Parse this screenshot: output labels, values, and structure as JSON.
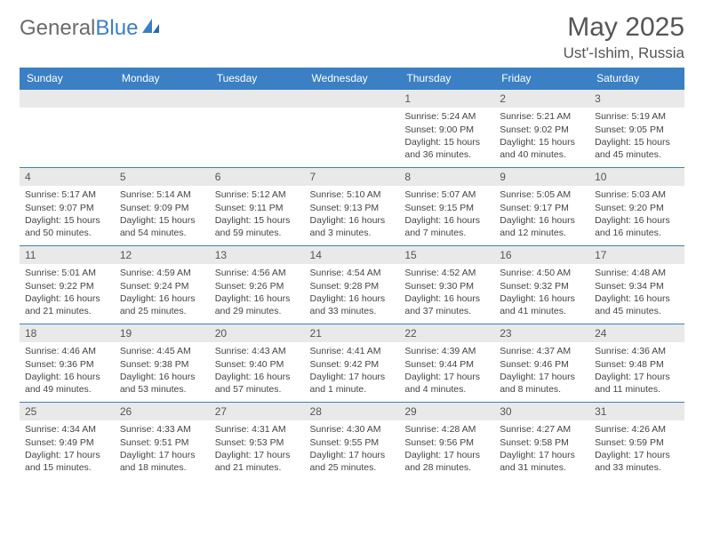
{
  "brand": {
    "general": "General",
    "blue": "Blue"
  },
  "title": "May 2025",
  "location": "Ust'-Ishim, Russia",
  "colors": {
    "header_bg": "#3b7fc4",
    "header_fg": "#ffffff",
    "band_bg": "#e9e9e9",
    "row_divider": "#3b7fc4",
    "text": "#444444",
    "title_color": "#555555",
    "logo_gray": "#6b6b6b"
  },
  "typography": {
    "title_fontsize": 30,
    "location_fontsize": 17,
    "weekday_fontsize": 12,
    "daynum_fontsize": 12,
    "body_fontsize": 10.5
  },
  "weekdays": [
    "Sunday",
    "Monday",
    "Tuesday",
    "Wednesday",
    "Thursday",
    "Friday",
    "Saturday"
  ],
  "weeks": [
    [
      null,
      null,
      null,
      null,
      {
        "n": "1",
        "sunrise": "5:24 AM",
        "sunset": "9:00 PM",
        "dl": "15 hours and 36 minutes."
      },
      {
        "n": "2",
        "sunrise": "5:21 AM",
        "sunset": "9:02 PM",
        "dl": "15 hours and 40 minutes."
      },
      {
        "n": "3",
        "sunrise": "5:19 AM",
        "sunset": "9:05 PM",
        "dl": "15 hours and 45 minutes."
      }
    ],
    [
      {
        "n": "4",
        "sunrise": "5:17 AM",
        "sunset": "9:07 PM",
        "dl": "15 hours and 50 minutes."
      },
      {
        "n": "5",
        "sunrise": "5:14 AM",
        "sunset": "9:09 PM",
        "dl": "15 hours and 54 minutes."
      },
      {
        "n": "6",
        "sunrise": "5:12 AM",
        "sunset": "9:11 PM",
        "dl": "15 hours and 59 minutes."
      },
      {
        "n": "7",
        "sunrise": "5:10 AM",
        "sunset": "9:13 PM",
        "dl": "16 hours and 3 minutes."
      },
      {
        "n": "8",
        "sunrise": "5:07 AM",
        "sunset": "9:15 PM",
        "dl": "16 hours and 7 minutes."
      },
      {
        "n": "9",
        "sunrise": "5:05 AM",
        "sunset": "9:17 PM",
        "dl": "16 hours and 12 minutes."
      },
      {
        "n": "10",
        "sunrise": "5:03 AM",
        "sunset": "9:20 PM",
        "dl": "16 hours and 16 minutes."
      }
    ],
    [
      {
        "n": "11",
        "sunrise": "5:01 AM",
        "sunset": "9:22 PM",
        "dl": "16 hours and 21 minutes."
      },
      {
        "n": "12",
        "sunrise": "4:59 AM",
        "sunset": "9:24 PM",
        "dl": "16 hours and 25 minutes."
      },
      {
        "n": "13",
        "sunrise": "4:56 AM",
        "sunset": "9:26 PM",
        "dl": "16 hours and 29 minutes."
      },
      {
        "n": "14",
        "sunrise": "4:54 AM",
        "sunset": "9:28 PM",
        "dl": "16 hours and 33 minutes."
      },
      {
        "n": "15",
        "sunrise": "4:52 AM",
        "sunset": "9:30 PM",
        "dl": "16 hours and 37 minutes."
      },
      {
        "n": "16",
        "sunrise": "4:50 AM",
        "sunset": "9:32 PM",
        "dl": "16 hours and 41 minutes."
      },
      {
        "n": "17",
        "sunrise": "4:48 AM",
        "sunset": "9:34 PM",
        "dl": "16 hours and 45 minutes."
      }
    ],
    [
      {
        "n": "18",
        "sunrise": "4:46 AM",
        "sunset": "9:36 PM",
        "dl": "16 hours and 49 minutes."
      },
      {
        "n": "19",
        "sunrise": "4:45 AM",
        "sunset": "9:38 PM",
        "dl": "16 hours and 53 minutes."
      },
      {
        "n": "20",
        "sunrise": "4:43 AM",
        "sunset": "9:40 PM",
        "dl": "16 hours and 57 minutes."
      },
      {
        "n": "21",
        "sunrise": "4:41 AM",
        "sunset": "9:42 PM",
        "dl": "17 hours and 1 minute."
      },
      {
        "n": "22",
        "sunrise": "4:39 AM",
        "sunset": "9:44 PM",
        "dl": "17 hours and 4 minutes."
      },
      {
        "n": "23",
        "sunrise": "4:37 AM",
        "sunset": "9:46 PM",
        "dl": "17 hours and 8 minutes."
      },
      {
        "n": "24",
        "sunrise": "4:36 AM",
        "sunset": "9:48 PM",
        "dl": "17 hours and 11 minutes."
      }
    ],
    [
      {
        "n": "25",
        "sunrise": "4:34 AM",
        "sunset": "9:49 PM",
        "dl": "17 hours and 15 minutes."
      },
      {
        "n": "26",
        "sunrise": "4:33 AM",
        "sunset": "9:51 PM",
        "dl": "17 hours and 18 minutes."
      },
      {
        "n": "27",
        "sunrise": "4:31 AM",
        "sunset": "9:53 PM",
        "dl": "17 hours and 21 minutes."
      },
      {
        "n": "28",
        "sunrise": "4:30 AM",
        "sunset": "9:55 PM",
        "dl": "17 hours and 25 minutes."
      },
      {
        "n": "29",
        "sunrise": "4:28 AM",
        "sunset": "9:56 PM",
        "dl": "17 hours and 28 minutes."
      },
      {
        "n": "30",
        "sunrise": "4:27 AM",
        "sunset": "9:58 PM",
        "dl": "17 hours and 31 minutes."
      },
      {
        "n": "31",
        "sunrise": "4:26 AM",
        "sunset": "9:59 PM",
        "dl": "17 hours and 33 minutes."
      }
    ]
  ],
  "labels": {
    "sunrise": "Sunrise: ",
    "sunset": "Sunset: ",
    "daylight": "Daylight: "
  }
}
